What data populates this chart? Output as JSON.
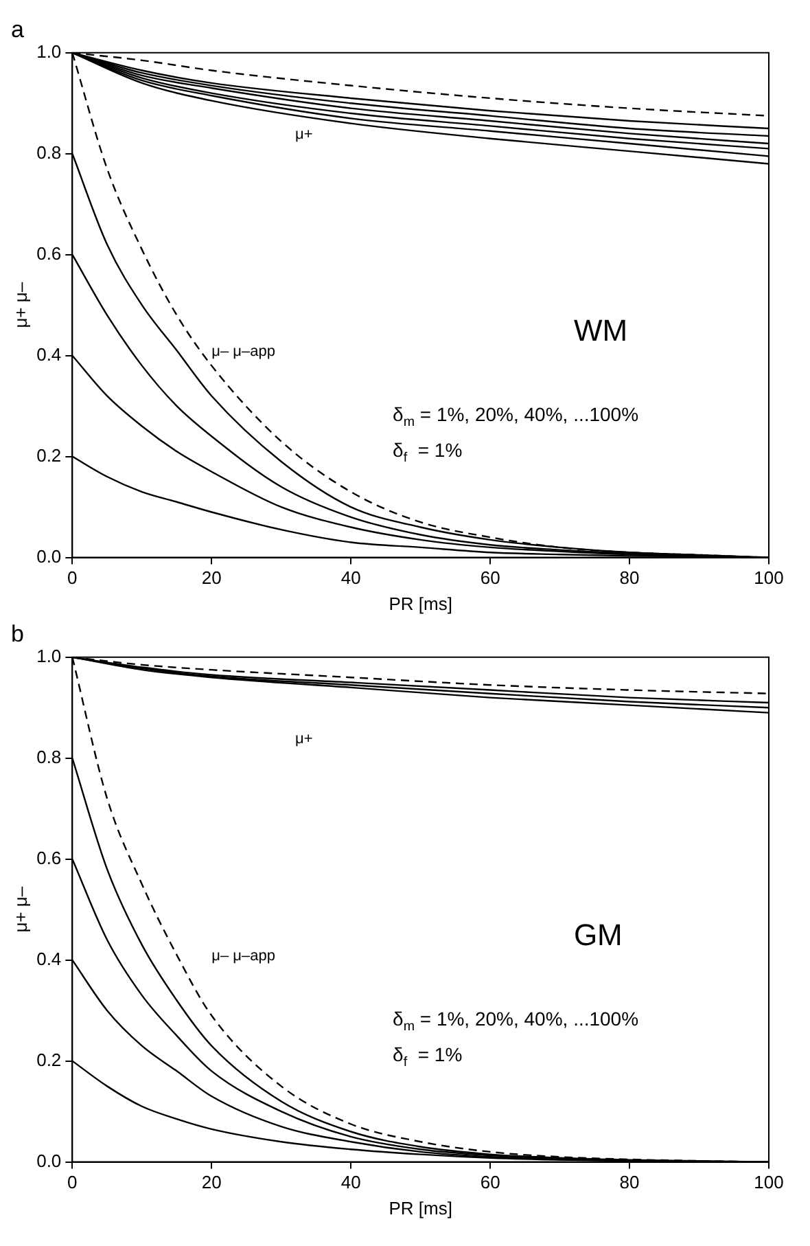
{
  "chart_data": [
    {
      "type": "line",
      "title": "a",
      "xlabel": "PR [ms]",
      "ylabel": "μ+ μ–",
      "xlim": [
        0,
        100
      ],
      "ylim": [
        0,
        1
      ],
      "xticks": [
        0,
        20,
        40,
        60,
        80,
        100
      ],
      "yticks": [
        {
          "value": 0,
          "label": "0.0"
        },
        {
          "value": 0.2,
          "label": "0.2"
        },
        {
          "value": 0.4,
          "label": "0.4"
        },
        {
          "value": 0.6,
          "label": "0.6"
        },
        {
          "value": 0.8,
          "label": "0.8"
        },
        {
          "value": 1,
          "label": "1.0"
        }
      ],
      "grid": false,
      "legend": false,
      "marker": "none",
      "x": [
        0,
        5,
        10,
        15,
        20,
        30,
        40,
        50,
        60,
        70,
        80,
        90,
        100
      ],
      "series": [
        {
          "color": "#000000",
          "line_style": "dashed",
          "x": [
            0,
            10,
            20,
            40,
            60,
            80,
            100
          ],
          "values": [
            1,
            0.985,
            0.965,
            0.935,
            0.91,
            0.89,
            0.875
          ]
        },
        {
          "color": "#000000",
          "line_style": "solid",
          "x": [
            0,
            10,
            20,
            40,
            60,
            80,
            100
          ],
          "values": [
            1,
            0.965,
            0.94,
            0.91,
            0.885,
            0.865,
            0.85
          ]
        },
        {
          "color": "#000000",
          "line_style": "solid",
          "x": [
            0,
            10,
            20,
            40,
            60,
            80,
            100
          ],
          "values": [
            1,
            0.96,
            0.935,
            0.9,
            0.875,
            0.85,
            0.835
          ]
        },
        {
          "color": "#000000",
          "line_style": "solid",
          "x": [
            0,
            10,
            20,
            40,
            60,
            80,
            100
          ],
          "values": [
            1,
            0.955,
            0.93,
            0.89,
            0.865,
            0.84,
            0.82
          ]
        },
        {
          "color": "#000000",
          "line_style": "solid",
          "x": [
            0,
            10,
            20,
            40,
            60,
            80,
            100
          ],
          "values": [
            1,
            0.95,
            0.92,
            0.88,
            0.855,
            0.83,
            0.81
          ]
        },
        {
          "color": "#000000",
          "line_style": "solid",
          "x": [
            0,
            10,
            20,
            40,
            60,
            80,
            100
          ],
          "values": [
            1,
            0.945,
            0.915,
            0.87,
            0.845,
            0.82,
            0.795
          ]
        },
        {
          "color": "#000000",
          "line_style": "solid",
          "x": [
            0,
            10,
            20,
            40,
            60,
            80,
            100
          ],
          "values": [
            1,
            0.94,
            0.905,
            0.86,
            0.83,
            0.805,
            0.78
          ]
        },
        {
          "color": "#000000",
          "line_style": "dashed",
          "values": [
            1,
            0.77,
            0.61,
            0.48,
            0.38,
            0.23,
            0.13,
            0.07,
            0.04,
            0.02,
            0.01,
            0.005,
            0
          ]
        },
        {
          "color": "#000000",
          "line_style": "solid",
          "values": [
            0.8,
            0.62,
            0.5,
            0.41,
            0.32,
            0.19,
            0.1,
            0.06,
            0.035,
            0.02,
            0.01,
            0.005,
            0
          ]
        },
        {
          "color": "#000000",
          "line_style": "solid",
          "values": [
            0.6,
            0.48,
            0.38,
            0.3,
            0.24,
            0.14,
            0.08,
            0.045,
            0.025,
            0.015,
            0.008,
            0.004,
            0
          ]
        },
        {
          "color": "#000000",
          "line_style": "solid",
          "values": [
            0.4,
            0.32,
            0.26,
            0.21,
            0.17,
            0.1,
            0.06,
            0.035,
            0.02,
            0.012,
            0.006,
            0.003,
            0
          ]
        },
        {
          "color": "#000000",
          "line_style": "solid",
          "values": [
            0.2,
            0.16,
            0.13,
            0.11,
            0.09,
            0.055,
            0.03,
            0.02,
            0.01,
            0.006,
            0.003,
            0.002,
            0
          ]
        }
      ],
      "annotations": [
        "μ+",
        "μ– μ–app",
        "WM",
        "δ$_{m}$ = 1%, 20%, 40%, ...100%",
        "δ$_{f}$  = 1%"
      ]
    },
    {
      "type": "line",
      "title": "b",
      "xlabel": "PR [ms]",
      "ylabel": "μ+ μ–",
      "xlim": [
        0,
        100
      ],
      "ylim": [
        0,
        1
      ],
      "xticks": [
        0,
        20,
        40,
        60,
        80,
        100
      ],
      "yticks": [
        {
          "value": 0,
          "label": "0.0"
        },
        {
          "value": 0.2,
          "label": "0.2"
        },
        {
          "value": 0.4,
          "label": "0.4"
        },
        {
          "value": 0.6,
          "label": "0.6"
        },
        {
          "value": 0.8,
          "label": "0.8"
        },
        {
          "value": 1,
          "label": "1.0"
        }
      ],
      "grid": false,
      "legend": false,
      "marker": "none",
      "x": [
        0,
        5,
        10,
        15,
        20,
        30,
        40,
        50,
        60,
        70,
        80,
        90,
        100
      ],
      "series": [
        {
          "color": "#000000",
          "line_style": "dashed",
          "x": [
            0,
            10,
            20,
            40,
            60,
            80,
            100
          ],
          "values": [
            1,
            0.985,
            0.975,
            0.96,
            0.945,
            0.935,
            0.928
          ]
        },
        {
          "color": "#000000",
          "line_style": "solid",
          "x": [
            0,
            10,
            20,
            40,
            60,
            80,
            100
          ],
          "values": [
            1,
            0.98,
            0.965,
            0.95,
            0.935,
            0.92,
            0.91
          ]
        },
        {
          "color": "#000000",
          "line_style": "solid",
          "x": [
            0,
            10,
            20,
            40,
            60,
            80,
            100
          ],
          "values": [
            1,
            0.978,
            0.962,
            0.945,
            0.928,
            0.912,
            0.9
          ]
        },
        {
          "color": "#000000",
          "line_style": "solid",
          "x": [
            0,
            10,
            20,
            40,
            60,
            80,
            100
          ],
          "values": [
            1,
            0.975,
            0.96,
            0.94,
            0.92,
            0.905,
            0.89
          ]
        },
        {
          "color": "#000000",
          "line_style": "dashed",
          "values": [
            1,
            0.72,
            0.55,
            0.41,
            0.29,
            0.15,
            0.075,
            0.04,
            0.02,
            0.01,
            0.005,
            0.002,
            0
          ]
        },
        {
          "color": "#000000",
          "line_style": "solid",
          "values": [
            0.8,
            0.58,
            0.43,
            0.32,
            0.23,
            0.12,
            0.06,
            0.03,
            0.015,
            0.008,
            0.004,
            0.002,
            0
          ]
        },
        {
          "color": "#000000",
          "line_style": "solid",
          "values": [
            0.6,
            0.44,
            0.33,
            0.25,
            0.18,
            0.1,
            0.05,
            0.025,
            0.013,
            0.007,
            0.003,
            0.001,
            0
          ]
        },
        {
          "color": "#000000",
          "line_style": "solid",
          "values": [
            0.4,
            0.3,
            0.23,
            0.18,
            0.13,
            0.07,
            0.04,
            0.02,
            0.01,
            0.005,
            0.002,
            0.001,
            0
          ]
        },
        {
          "color": "#000000",
          "line_style": "solid",
          "values": [
            0.2,
            0.15,
            0.11,
            0.085,
            0.065,
            0.04,
            0.025,
            0.015,
            0.008,
            0.004,
            0.002,
            0.001,
            0
          ]
        }
      ],
      "annotations": [
        "μ+",
        "μ– μ–app",
        "GM",
        "δ$_{m}$ = 1%, 20%, 40%, ...100%",
        "δ$_{f}$  = 1%"
      ]
    }
  ]
}
